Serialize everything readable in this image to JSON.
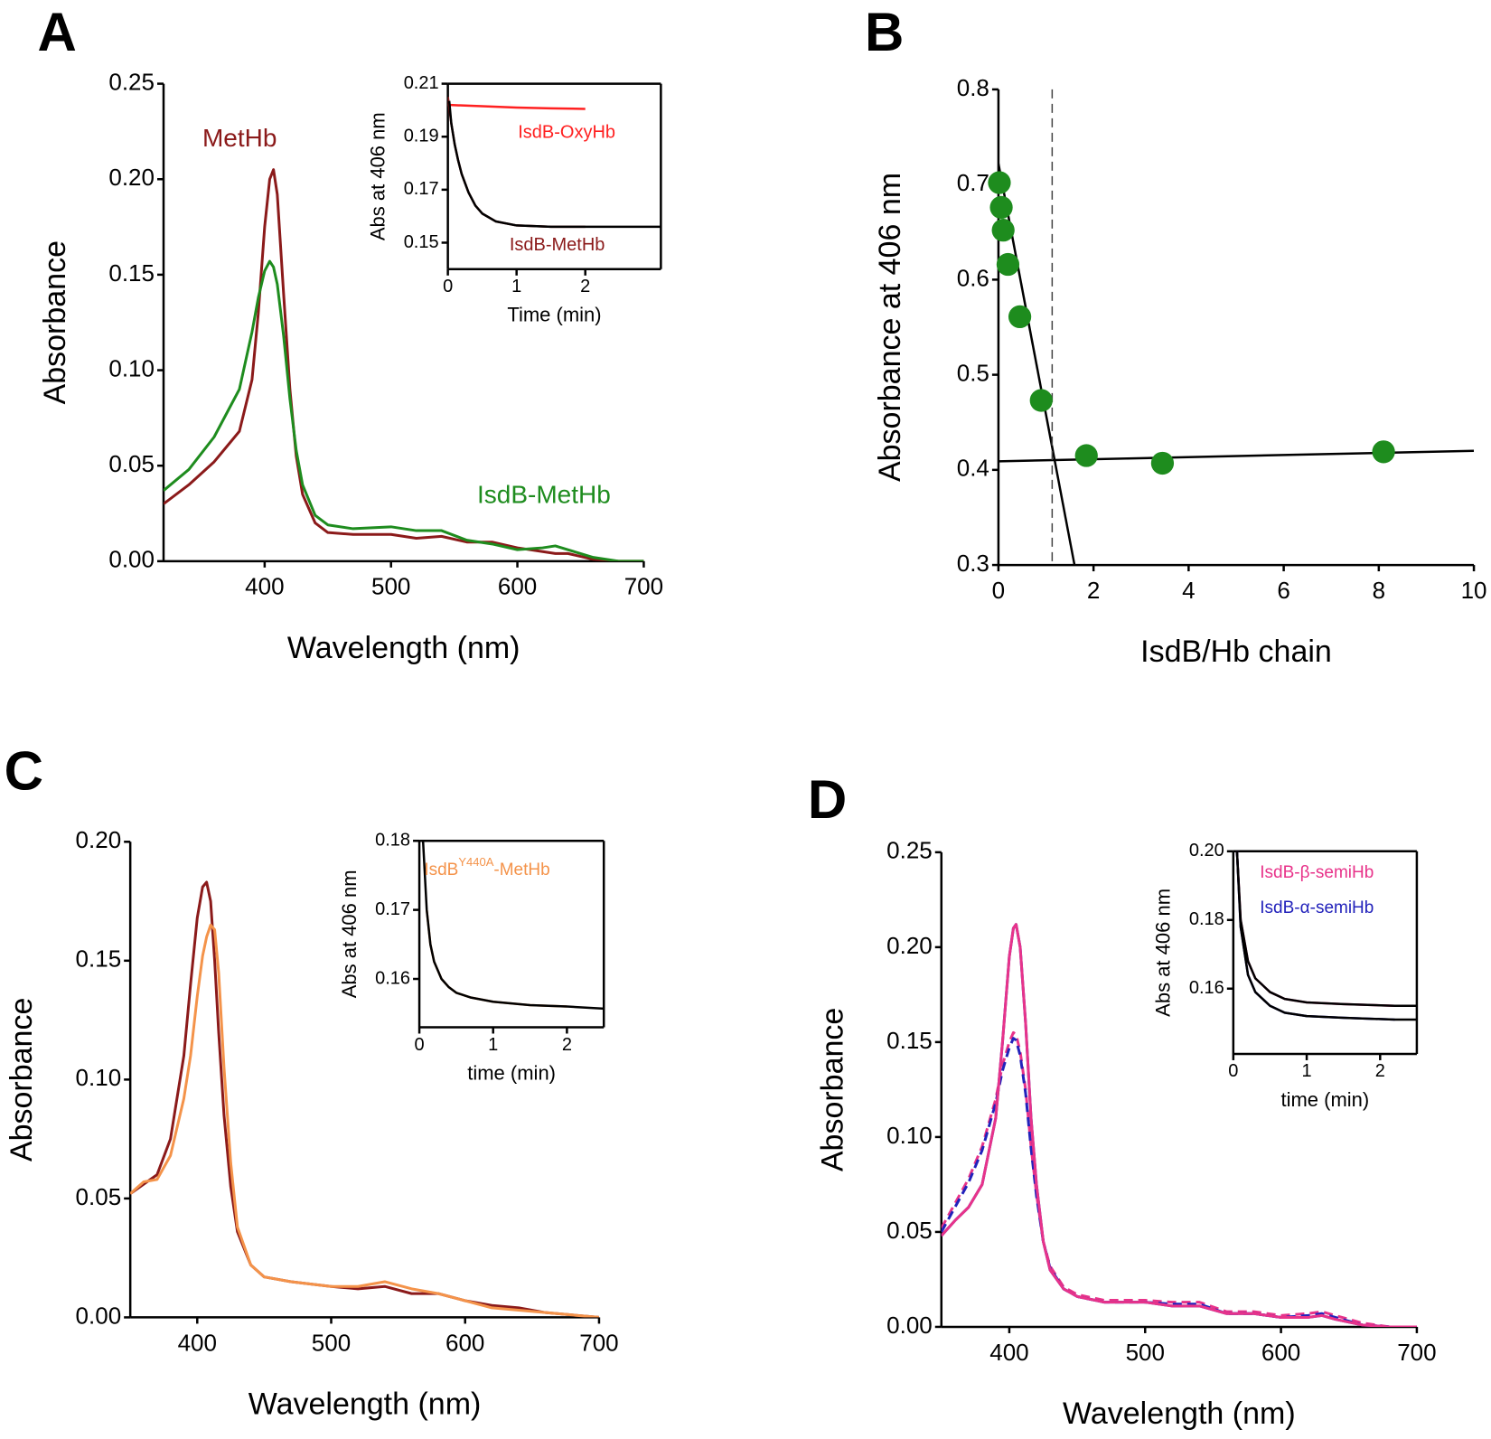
{
  "chart_data": [
    {
      "type": "line",
      "panel": "A",
      "xlabel": "Wavelength (nm)",
      "ylabel": "Absorbance",
      "xlim": [
        320,
        700
      ],
      "ylim": [
        0,
        0.25
      ],
      "xticks": [
        400,
        500,
        600,
        700
      ],
      "yticks": [
        {
          "value": 0,
          "label": "0.00"
        },
        0.05,
        {
          "value": 0.1,
          "label": "0.10"
        },
        0.15,
        {
          "value": 0.2,
          "label": "0.20"
        },
        0.25
      ],
      "x": [
        320,
        340,
        360,
        380,
        390,
        395,
        400,
        404,
        407,
        410,
        415,
        420,
        425,
        430,
        440,
        450,
        470,
        500,
        520,
        540,
        560,
        580,
        600,
        620,
        630,
        640,
        660,
        680,
        700
      ],
      "series": [
        {
          "name": "MetHb",
          "color": "#8b1a1a",
          "values": [
            0.03,
            0.04,
            0.052,
            0.068,
            0.095,
            0.13,
            0.175,
            0.2,
            0.205,
            0.192,
            0.14,
            0.09,
            0.055,
            0.035,
            0.02,
            0.015,
            0.014,
            0.014,
            0.012,
            0.013,
            0.01,
            0.01,
            0.007,
            0.005,
            0.004,
            0.004,
            0.001,
            0,
            0
          ]
        },
        {
          "name": "IsdB-MetHb",
          "color": "#1e8c1e",
          "values": [
            0.037,
            0.048,
            0.065,
            0.09,
            0.12,
            0.138,
            0.152,
            0.157,
            0.154,
            0.145,
            0.118,
            0.085,
            0.058,
            0.04,
            0.024,
            0.019,
            0.017,
            0.018,
            0.016,
            0.016,
            0.011,
            0.009,
            0.006,
            0.007,
            0.008,
            0.006,
            0.002,
            0,
            0
          ]
        }
      ]
    },
    {
      "type": "line",
      "xlabel": "Time (min)",
      "ylabel": "Abs at 406 nm",
      "xlim": [
        0,
        3.1
      ],
      "ylim": [
        0.14,
        0.21
      ],
      "xticks": [
        0,
        1,
        2
      ],
      "yticks": [
        0.15,
        0.17,
        0.19,
        0.21
      ],
      "series": [
        {
          "name": "IsdB-OxyHb",
          "color": "#ff2020",
          "x": [
            0,
            0.5,
            1,
            1.5,
            2
          ],
          "values": [
            0.202,
            0.2015,
            0.201,
            0.2007,
            0.2005
          ]
        },
        {
          "name": "IsdB-MetHb",
          "color": "#8b1a1a",
          "x": [
            0,
            0.05,
            0.1,
            0.15,
            0.2,
            0.3,
            0.4,
            0.5,
            0.7,
            1,
            1.5,
            2
          ],
          "values": [
            0.205,
            0.195,
            0.187,
            0.181,
            0.176,
            0.169,
            0.164,
            0.161,
            0.158,
            0.1565,
            0.156,
            0.156
          ]
        },
        {
          "color": "#000000",
          "x": [
            0.02,
            0.05,
            0.1,
            0.15,
            0.2,
            0.3,
            0.4,
            0.5,
            0.7,
            1,
            1.5,
            2,
            3.1
          ],
          "values": [
            0.2035,
            0.195,
            0.187,
            0.181,
            0.176,
            0.169,
            0.164,
            0.161,
            0.158,
            0.1565,
            0.156,
            0.156,
            0.156
          ]
        }
      ]
    },
    {
      "type": "scatter",
      "panel": "B",
      "xlabel": "IsdB/Hb chain",
      "ylabel": "Absorbance at 406 nm",
      "xlim": [
        0,
        10
      ],
      "ylim": [
        0.3,
        0.8
      ],
      "xticks": [
        0,
        2,
        4,
        6,
        8,
        10
      ],
      "yticks": [
        0.3,
        0.4,
        0.5,
        0.6,
        0.7,
        0.8
      ],
      "color": "#1e8c1e",
      "x": [
        0.02,
        0.06,
        0.1,
        0.2,
        0.45,
        0.9,
        1.85,
        3.45,
        8.1
      ],
      "values": [
        0.702,
        0.676,
        0.652,
        0.616,
        0.561,
        0.473,
        0.415,
        0.407,
        0.419
      ],
      "fit_lines": [
        {
          "x": [
            0,
            1.6
          ],
          "values": [
            0.722,
            0.3
          ]
        },
        {
          "x": [
            0,
            10
          ],
          "values": [
            0.409,
            0.42
          ]
        }
      ],
      "vline": 1.13
    },
    {
      "type": "line",
      "panel": "C",
      "xlabel": "Wavelength (nm)",
      "ylabel": "Absorbance",
      "xlim": [
        350,
        700
      ],
      "ylim": [
        0,
        0.2
      ],
      "xticks": [
        400,
        500,
        600,
        700
      ],
      "yticks": [
        {
          "value": 0,
          "label": "0.00"
        },
        0.05,
        {
          "value": 0.1,
          "label": "0.10"
        },
        0.15,
        {
          "value": 0.2,
          "label": "0.20"
        }
      ],
      "x": [
        350,
        360,
        370,
        380,
        390,
        395,
        400,
        404,
        407,
        410,
        413,
        416,
        420,
        425,
        430,
        440,
        450,
        470,
        500,
        520,
        540,
        560,
        580,
        600,
        620,
        640,
        660,
        680,
        700
      ],
      "series": [
        {
          "color": "#8b1a1a",
          "values": [
            0.052,
            0.056,
            0.06,
            0.075,
            0.11,
            0.14,
            0.168,
            0.181,
            0.183,
            0.175,
            0.15,
            0.12,
            0.085,
            0.055,
            0.036,
            0.022,
            0.017,
            0.015,
            0.013,
            0.012,
            0.013,
            0.01,
            0.01,
            0.007,
            0.005,
            0.004,
            0.002,
            0.001,
            0
          ]
        },
        {
          "color": "#f4934a",
          "values": [
            0.052,
            0.057,
            0.058,
            0.068,
            0.092,
            0.11,
            0.135,
            0.152,
            0.16,
            0.165,
            0.163,
            0.145,
            0.105,
            0.065,
            0.038,
            0.022,
            0.017,
            0.015,
            0.013,
            0.013,
            0.015,
            0.012,
            0.01,
            0.007,
            0.004,
            0.003,
            0.002,
            0.001,
            0
          ]
        }
      ]
    },
    {
      "type": "line",
      "xlabel": "time (min)",
      "ylabel": "Abs at 406 nm",
      "xlim": [
        0,
        2.5
      ],
      "ylim": [
        0.153,
        0.18
      ],
      "xticks": [
        0,
        1,
        2
      ],
      "yticks": [
        0.16,
        0.17,
        0.18
      ],
      "annotation": {
        "text": "IsdB",
        "superscript": "Y440A",
        "suffix": "-MetHb"
      },
      "series": [
        {
          "color": "#f4934a",
          "x": [
            0.1,
            0.15,
            0.2,
            0.3,
            0.4,
            0.5,
            0.7,
            1,
            1.5,
            2
          ],
          "values": [
            0.17,
            0.165,
            0.1625,
            0.16,
            0.1588,
            0.158,
            0.1573,
            0.1567,
            0.1562,
            0.156
          ]
        },
        {
          "color": "#000000",
          "x": [
            0.05,
            0.1,
            0.15,
            0.2,
            0.3,
            0.4,
            0.5,
            0.7,
            1,
            1.5,
            2,
            2.5
          ],
          "values": [
            0.18,
            0.17,
            0.165,
            0.1625,
            0.16,
            0.1588,
            0.158,
            0.1573,
            0.1567,
            0.1562,
            0.156,
            0.1557
          ]
        }
      ]
    },
    {
      "type": "line",
      "panel": "D",
      "xlabel": "Wavelength (nm)",
      "ylabel": "Absorbance",
      "xlim": [
        350,
        700
      ],
      "ylim": [
        0,
        0.25
      ],
      "xticks": [
        400,
        500,
        600,
        700
      ],
      "yticks": [
        {
          "value": 0,
          "label": "0.00"
        },
        0.05,
        {
          "value": 0.1,
          "label": "0.10"
        },
        0.15,
        {
          "value": 0.2,
          "label": "0.20"
        },
        0.25
      ],
      "x": [
        350,
        360,
        370,
        380,
        390,
        395,
        400,
        403,
        405,
        408,
        412,
        416,
        420,
        425,
        430,
        440,
        450,
        470,
        500,
        520,
        540,
        560,
        580,
        600,
        620,
        630,
        640,
        660,
        680,
        700
      ],
      "series": [
        {
          "color": "#e8338a",
          "dash": true,
          "values": [
            0.052,
            0.065,
            0.078,
            0.095,
            0.12,
            0.138,
            0.15,
            0.155,
            0.154,
            0.145,
            0.125,
            0.095,
            0.07,
            0.045,
            0.032,
            0.021,
            0.017,
            0.014,
            0.014,
            0.013,
            0.013,
            0.008,
            0.008,
            0.006,
            0.007,
            0.008,
            0.006,
            0.002,
            0,
            0
          ]
        },
        {
          "color": "#2222bb",
          "dash": true,
          "values": [
            0.05,
            0.063,
            0.076,
            0.093,
            0.118,
            0.135,
            0.147,
            0.152,
            0.151,
            0.143,
            0.123,
            0.094,
            0.069,
            0.045,
            0.031,
            0.02,
            0.016,
            0.013,
            0.013,
            0.012,
            0.012,
            0.007,
            0.007,
            0.005,
            0.006,
            0.007,
            0.005,
            0.001,
            0,
            0
          ]
        },
        {
          "color": "#2222bb",
          "values": [
            0.048,
            0.056,
            0.063,
            0.075,
            0.11,
            0.15,
            0.195,
            0.21,
            0.212,
            0.2,
            0.16,
            0.11,
            0.075,
            0.045,
            0.03,
            0.02,
            0.016,
            0.013,
            0.013,
            0.011,
            0.011,
            0.007,
            0.007,
            0.005,
            0.005,
            0.006,
            0.004,
            0.001,
            0,
            0
          ]
        },
        {
          "color": "#e8338a",
          "values": [
            0.048,
            0.056,
            0.063,
            0.075,
            0.11,
            0.15,
            0.195,
            0.21,
            0.212,
            0.2,
            0.16,
            0.11,
            0.075,
            0.045,
            0.03,
            0.02,
            0.016,
            0.013,
            0.013,
            0.011,
            0.011,
            0.007,
            0.007,
            0.005,
            0.005,
            0.006,
            0.004,
            0.001,
            0,
            0
          ]
        }
      ]
    },
    {
      "type": "line",
      "xlabel": "time (min)",
      "ylabel": "Abs at 406 nm",
      "xlim": [
        0,
        2.5
      ],
      "ylim": [
        0.141,
        0.2
      ],
      "xticks": [
        0,
        1,
        2
      ],
      "yticks": [
        0.16,
        0.18,
        {
          "value": 0.2,
          "label": "0.20"
        }
      ],
      "series": [
        {
          "name": "IsdB-β-semiHb",
          "color": "#e8338a",
          "x": [
            0.05,
            0.1,
            0.2,
            0.3,
            0.5,
            0.7,
            1,
            1.5,
            2.2
          ],
          "values": [
            0.2,
            0.18,
            0.168,
            0.163,
            0.159,
            0.157,
            0.156,
            0.1555,
            0.155
          ]
        },
        {
          "name": "IsdB-α-semiHb",
          "color": "#2222bb",
          "x": [
            0.05,
            0.1,
            0.2,
            0.3,
            0.5,
            0.7,
            1,
            1.5,
            2.2
          ],
          "values": [
            0.2,
            0.178,
            0.164,
            0.159,
            0.155,
            0.153,
            0.152,
            0.1515,
            0.151
          ]
        },
        {
          "color": "#000000",
          "x": [
            0.05,
            0.1,
            0.2,
            0.3,
            0.5,
            0.7,
            1,
            1.5,
            2.2,
            2.5
          ],
          "values": [
            0.2,
            0.18,
            0.168,
            0.163,
            0.159,
            0.157,
            0.156,
            0.1555,
            0.155,
            0.155
          ]
        },
        {
          "color": "#000000",
          "x": [
            0.05,
            0.1,
            0.2,
            0.3,
            0.5,
            0.7,
            1,
            1.5,
            2.2,
            2.5
          ],
          "values": [
            0.2,
            0.178,
            0.164,
            0.159,
            0.155,
            0.153,
            0.152,
            0.1515,
            0.151,
            0.151
          ]
        }
      ]
    }
  ]
}
